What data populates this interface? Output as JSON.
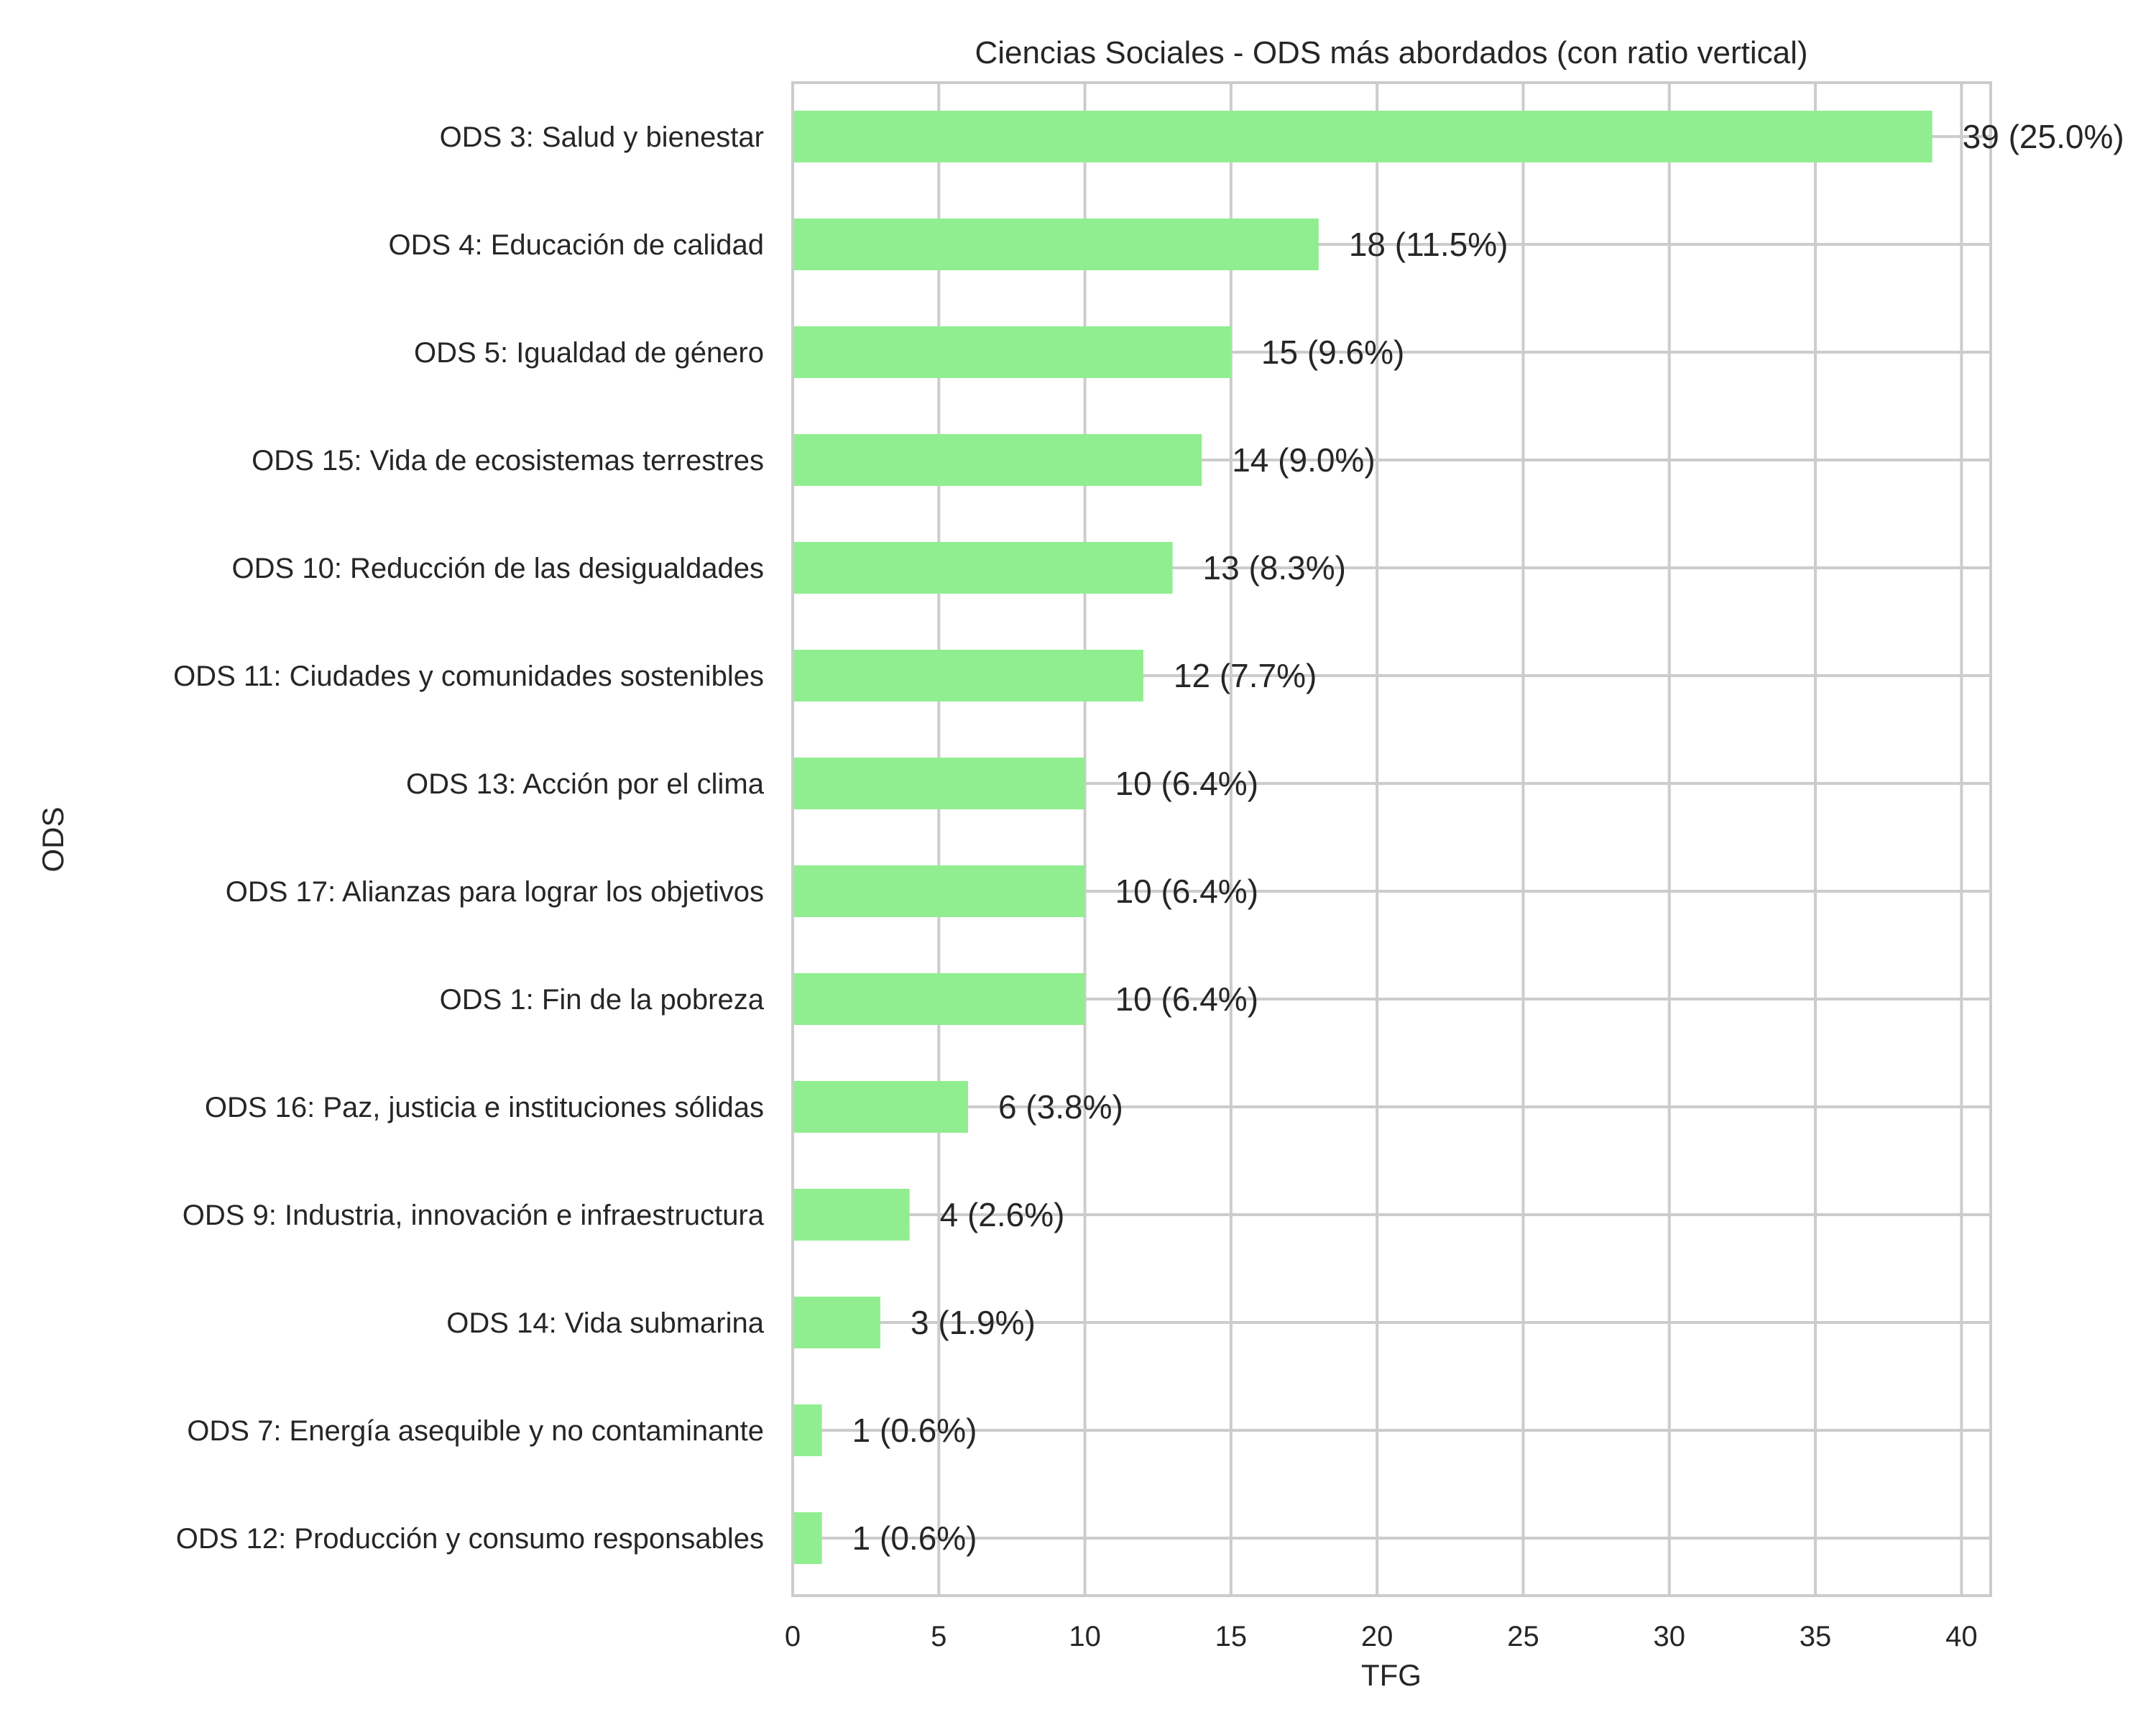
{
  "chart_data": {
    "type": "bar",
    "orientation": "horizontal",
    "title": "Ciencias Sociales - ODS más abordados (con ratio vertical)",
    "xlabel": "TFG",
    "ylabel": "ODS",
    "xlim": [
      0,
      41
    ],
    "xticks": [
      0,
      5,
      10,
      15,
      20,
      25,
      30,
      35,
      40
    ],
    "grid": true,
    "bar_color": "#90ee90",
    "grid_color": "#cccccc",
    "categories": [
      "ODS 3: Salud y bienestar",
      "ODS 4: Educación de calidad",
      "ODS 5: Igualdad de género",
      "ODS 15: Vida de ecosistemas terrestres",
      "ODS 10: Reducción de las desigualdades",
      "ODS 11: Ciudades y comunidades sostenibles",
      "ODS 13: Acción por el clima",
      "ODS 17: Alianzas para lograr los objetivos",
      "ODS 1: Fin de la pobreza",
      "ODS 16: Paz, justicia e instituciones sólidas",
      "ODS 9: Industria, innovación e infraestructura",
      "ODS 14: Vida submarina",
      "ODS 7: Energía asequible y no contaminante",
      "ODS 12: Producción y consumo responsables"
    ],
    "values": [
      39,
      18,
      15,
      14,
      13,
      12,
      10,
      10,
      10,
      6,
      4,
      3,
      1,
      1
    ],
    "value_labels": [
      "39 (25.0%)",
      "18 (11.5%)",
      "15 (9.6%)",
      "14 (9.0%)",
      "13 (8.3%)",
      "12 (7.7%)",
      "10 (6.4%)",
      "10 (6.4%)",
      "10 (6.4%)",
      "6 (3.8%)",
      "4 (2.6%)",
      "3 (1.9%)",
      "1 (0.6%)",
      "1 (0.6%)"
    ]
  }
}
